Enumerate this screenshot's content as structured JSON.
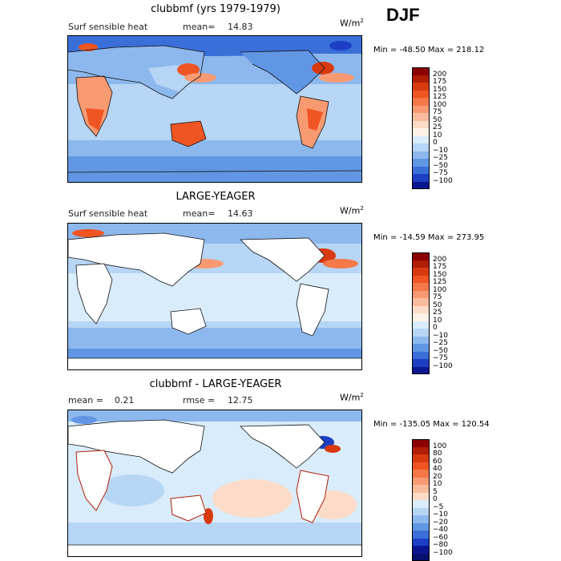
{
  "season": "DJF",
  "unit": "W/m",
  "unit_exp": "2",
  "panels": [
    {
      "title": "clubbmf (yrs 1979-1979)",
      "left_label": "Surf sensible heat",
      "stat_label": "mean=",
      "stat_value": "14.83",
      "minmax": "Min = -48.50  Max = 218.12",
      "type": "field"
    },
    {
      "title": "LARGE-YEAGER",
      "left_label": "Surf sensible heat",
      "stat_label": "mean=",
      "stat_value": "14.63",
      "minmax": "Min = -14.59  Max = 273.95",
      "type": "field_ocean"
    },
    {
      "title": "clubbmf - LARGE-YEAGER",
      "left_label": "mean =    0.21",
      "stat_label": "rmse =",
      "stat_value": "12.75",
      "minmax": "Min = -135.05  Max = 120.54",
      "type": "diff"
    }
  ],
  "colorbar_field": {
    "labels": [
      "200",
      "175",
      "150",
      "125",
      "100",
      "75",
      "50",
      "25",
      "10",
      "0",
      "−10",
      "−25",
      "−50",
      "−75",
      "−100"
    ],
    "colors": [
      "#8b0000",
      "#b01e06",
      "#d83a10",
      "#ee5522",
      "#f47848",
      "#f79a72",
      "#f9bb9e",
      "#fcdcc8",
      "#fdf2e6",
      "#d9ecfb",
      "#b7d5f5",
      "#8db8ee",
      "#6196e3",
      "#3b6fd8",
      "#1c3fc4",
      "#0a1690"
    ]
  },
  "colorbar_diff": {
    "labels": [
      "100",
      "80",
      "60",
      "40",
      "20",
      "10",
      "5",
      "0",
      "−5",
      "−10",
      "−20",
      "−40",
      "−60",
      "−80",
      "−100"
    ],
    "colors": [
      "#8b0000",
      "#b01e06",
      "#d83a10",
      "#ee5522",
      "#f47848",
      "#f79a72",
      "#f9bb9e",
      "#fcdcc8",
      "#d9ecfb",
      "#b7d5f5",
      "#8db8ee",
      "#6196e3",
      "#3b6fd8",
      "#1c3fc4",
      "#0a1690",
      "#06106e"
    ]
  }
}
